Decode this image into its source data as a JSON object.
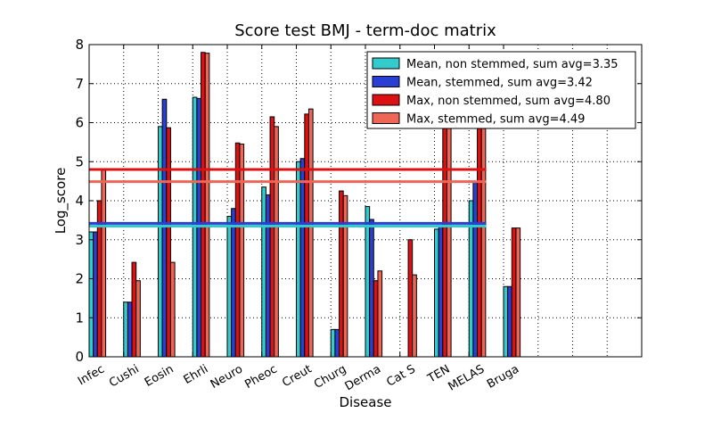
{
  "chart_data": {
    "type": "bar",
    "title": "Score test BMJ - term-doc matrix",
    "xlabel": "Disease",
    "ylabel": "Log_score",
    "ylim": [
      0,
      8
    ],
    "yticks": [
      0,
      1,
      2,
      3,
      4,
      5,
      6,
      7,
      8
    ],
    "categories": [
      "Infec",
      "Cushi",
      "Eosin",
      "Ehrli",
      "Neuro",
      "Pheoc",
      "Creut",
      "Churg",
      "Derma",
      "Cat S",
      "TEN",
      "MELAS",
      "Bruga"
    ],
    "slots": 16,
    "grid": true,
    "legend_position": "top-right",
    "series": [
      {
        "name": "Mean, non stemmed, sum avg=3.35",
        "color": "#33cccc",
        "values": [
          3.2,
          1.4,
          5.9,
          6.65,
          3.6,
          4.35,
          5.0,
          0.7,
          3.85,
          0.0,
          3.27,
          4.0,
          1.8
        ]
      },
      {
        "name": "Mean, stemmed, sum avg=3.42",
        "color": "#2a3fd4",
        "values": [
          3.2,
          1.4,
          6.6,
          6.62,
          3.8,
          4.15,
          5.08,
          0.7,
          3.52,
          0.0,
          3.35,
          4.5,
          1.8
        ]
      },
      {
        "name": "Max, non stemmed, sum avg=4.80",
        "color": "#dd1111",
        "values": [
          4.0,
          2.42,
          5.87,
          7.8,
          5.48,
          6.15,
          6.22,
          4.25,
          1.95,
          3.0,
          5.85,
          5.85,
          3.3
        ]
      },
      {
        "name": "Max, stemmed, sum avg=4.49",
        "color": "#ee6655",
        "values": [
          4.8,
          1.95,
          2.42,
          7.78,
          5.45,
          5.9,
          6.35,
          4.13,
          2.2,
          2.1,
          5.85,
          5.85,
          3.3
        ]
      }
    ],
    "hlines": [
      {
        "value": 4.8,
        "color": "#dd1111"
      },
      {
        "value": 4.49,
        "color": "#ee6655"
      },
      {
        "value": 3.42,
        "color": "#2a3fd4"
      },
      {
        "value": 3.35,
        "color": "#33cccc"
      }
    ]
  }
}
